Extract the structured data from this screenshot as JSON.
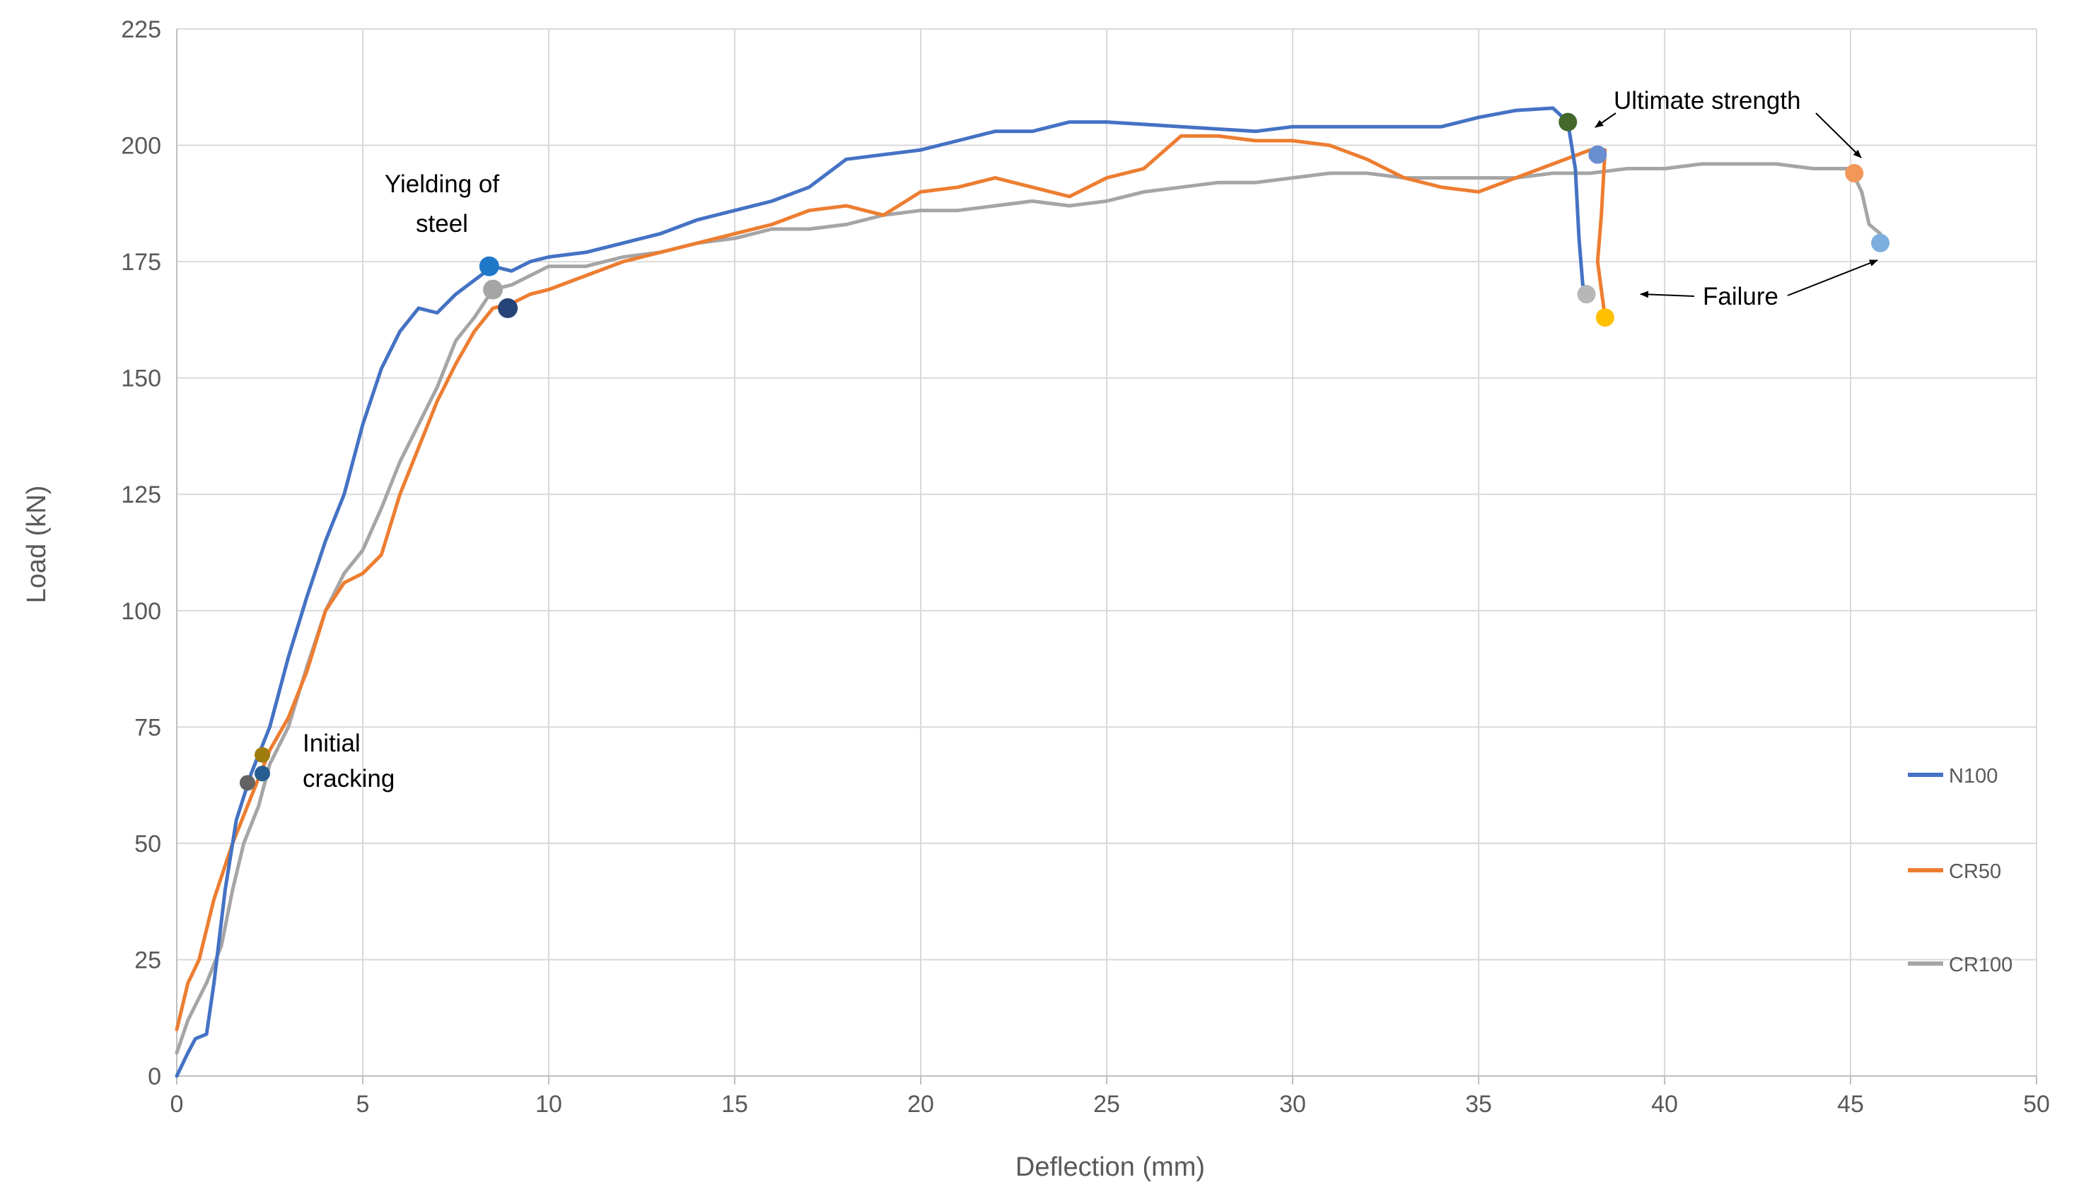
{
  "chart_data": {
    "type": "line",
    "xlabel": "Deflection (mm)",
    "ylabel": "Load (kN)",
    "xlim": [
      0,
      50
    ],
    "ylim": [
      0,
      225
    ],
    "xticks": [
      0,
      5,
      10,
      15,
      20,
      25,
      30,
      35,
      40,
      45,
      50
    ],
    "yticks": [
      0,
      25,
      50,
      75,
      100,
      125,
      150,
      175,
      200,
      225
    ],
    "grid": true,
    "legend_position": "right",
    "series": [
      {
        "name": "N100",
        "color": "#4472c4",
        "points": [
          [
            0,
            0
          ],
          [
            0.3,
            5
          ],
          [
            0.5,
            8
          ],
          [
            0.8,
            9
          ],
          [
            1.0,
            20
          ],
          [
            1.3,
            40
          ],
          [
            1.6,
            55
          ],
          [
            2.0,
            65
          ],
          [
            2.5,
            75
          ],
          [
            3.0,
            90
          ],
          [
            3.5,
            103
          ],
          [
            4.0,
            115
          ],
          [
            4.5,
            125
          ],
          [
            5.0,
            140
          ],
          [
            5.5,
            152
          ],
          [
            6.0,
            160
          ],
          [
            6.5,
            165
          ],
          [
            7.0,
            164
          ],
          [
            7.5,
            168
          ],
          [
            8.0,
            171
          ],
          [
            8.5,
            174
          ],
          [
            9.0,
            173
          ],
          [
            9.5,
            175
          ],
          [
            10.0,
            176
          ],
          [
            11.0,
            177
          ],
          [
            12.0,
            179
          ],
          [
            13.0,
            181
          ],
          [
            14.0,
            184
          ],
          [
            15.0,
            186
          ],
          [
            16.0,
            188
          ],
          [
            17.0,
            191
          ],
          [
            18.0,
            197
          ],
          [
            19.0,
            198
          ],
          [
            20.0,
            199
          ],
          [
            21.0,
            201
          ],
          [
            22.0,
            203
          ],
          [
            23.0,
            203
          ],
          [
            24.0,
            205
          ],
          [
            25.0,
            205
          ],
          [
            26.0,
            204.5
          ],
          [
            27.0,
            204
          ],
          [
            28.0,
            203.5
          ],
          [
            29.0,
            203
          ],
          [
            30.0,
            204
          ],
          [
            31.0,
            204
          ],
          [
            32.0,
            204
          ],
          [
            33.0,
            204
          ],
          [
            34.0,
            204
          ],
          [
            35.0,
            206
          ],
          [
            36.0,
            207.5
          ],
          [
            37.0,
            208
          ],
          [
            37.4,
            205
          ],
          [
            37.6,
            195
          ],
          [
            37.7,
            180
          ],
          [
            37.8,
            170
          ],
          [
            38.0,
            168
          ]
        ]
      },
      {
        "name": "CR50",
        "color": "#ed7d31",
        "points": [
          [
            0,
            10
          ],
          [
            0.3,
            20
          ],
          [
            0.6,
            25
          ],
          [
            1.0,
            38
          ],
          [
            1.5,
            50
          ],
          [
            2.0,
            60
          ],
          [
            2.5,
            70
          ],
          [
            3.0,
            77
          ],
          [
            3.5,
            87
          ],
          [
            4.0,
            100
          ],
          [
            4.5,
            106
          ],
          [
            5.0,
            108
          ],
          [
            5.5,
            112
          ],
          [
            6.0,
            125
          ],
          [
            6.5,
            135
          ],
          [
            7.0,
            145
          ],
          [
            7.5,
            153
          ],
          [
            8.0,
            160
          ],
          [
            8.5,
            165
          ],
          [
            9.0,
            166
          ],
          [
            9.5,
            168
          ],
          [
            10.0,
            169
          ],
          [
            11.0,
            172
          ],
          [
            12.0,
            175
          ],
          [
            13.0,
            177
          ],
          [
            14.0,
            179
          ],
          [
            15.0,
            181
          ],
          [
            16.0,
            183
          ],
          [
            17.0,
            186
          ],
          [
            18.0,
            187
          ],
          [
            19.0,
            185
          ],
          [
            20.0,
            190
          ],
          [
            21.0,
            191
          ],
          [
            22.0,
            193
          ],
          [
            23.0,
            191
          ],
          [
            24.0,
            189
          ],
          [
            25.0,
            193
          ],
          [
            26.0,
            195
          ],
          [
            27.0,
            202
          ],
          [
            28.0,
            202
          ],
          [
            29.0,
            201
          ],
          [
            30.0,
            201
          ],
          [
            31.0,
            200
          ],
          [
            32.0,
            197
          ],
          [
            33.0,
            193
          ],
          [
            34.0,
            191
          ],
          [
            35.0,
            190
          ],
          [
            36.0,
            193
          ],
          [
            37.0,
            196
          ],
          [
            38.0,
            199
          ],
          [
            38.4,
            199
          ],
          [
            38.3,
            185
          ],
          [
            38.2,
            175
          ],
          [
            38.4,
            163
          ]
        ]
      },
      {
        "name": "CR100",
        "color": "#a5a5a5",
        "points": [
          [
            0,
            5
          ],
          [
            0.3,
            12
          ],
          [
            0.8,
            20
          ],
          [
            1.2,
            28
          ],
          [
            1.5,
            40
          ],
          [
            1.8,
            50
          ],
          [
            2.2,
            58
          ],
          [
            2.5,
            67
          ],
          [
            3.0,
            75
          ],
          [
            3.5,
            88
          ],
          [
            4.0,
            100
          ],
          [
            4.5,
            108
          ],
          [
            5.0,
            113
          ],
          [
            5.5,
            122
          ],
          [
            6.0,
            132
          ],
          [
            6.5,
            140
          ],
          [
            7.0,
            148
          ],
          [
            7.5,
            158
          ],
          [
            8.0,
            163
          ],
          [
            8.5,
            169
          ],
          [
            9.0,
            170
          ],
          [
            9.5,
            172
          ],
          [
            10.0,
            174
          ],
          [
            11.0,
            174
          ],
          [
            12.0,
            176
          ],
          [
            13.0,
            177
          ],
          [
            14.0,
            179
          ],
          [
            15.0,
            180
          ],
          [
            16.0,
            182
          ],
          [
            17.0,
            182
          ],
          [
            18.0,
            183
          ],
          [
            19.0,
            185
          ],
          [
            20.0,
            186
          ],
          [
            21.0,
            186
          ],
          [
            22.0,
            187
          ],
          [
            23.0,
            188
          ],
          [
            24.0,
            187
          ],
          [
            25.0,
            188
          ],
          [
            26.0,
            190
          ],
          [
            27.0,
            191
          ],
          [
            28.0,
            192
          ],
          [
            29.0,
            192
          ],
          [
            30.0,
            193
          ],
          [
            31.0,
            194
          ],
          [
            32.0,
            194
          ],
          [
            33.0,
            193
          ],
          [
            34.0,
            193
          ],
          [
            35.0,
            193
          ],
          [
            36.0,
            193
          ],
          [
            37.0,
            194
          ],
          [
            38.0,
            194
          ],
          [
            39.0,
            195
          ],
          [
            40.0,
            195
          ],
          [
            41.0,
            196
          ],
          [
            42.0,
            196
          ],
          [
            43.0,
            196
          ],
          [
            44.0,
            195
          ],
          [
            45.0,
            195
          ],
          [
            45.3,
            190
          ],
          [
            45.5,
            183
          ],
          [
            45.8,
            181
          ],
          [
            45.9,
            179
          ]
        ]
      }
    ],
    "markers": [
      {
        "x": 2.3,
        "y": 65,
        "color": "#255e91",
        "r": 11
      },
      {
        "x": 2.3,
        "y": 69,
        "color": "#9e7c0c",
        "r": 11
      },
      {
        "x": 1.9,
        "y": 63,
        "color": "#636363",
        "r": 11
      },
      {
        "x": 8.4,
        "y": 174,
        "color": "#1f77c8",
        "r": 14
      },
      {
        "x": 8.5,
        "y": 169,
        "color": "#a5a5a5",
        "r": 14
      },
      {
        "x": 8.9,
        "y": 165,
        "color": "#264478",
        "r": 14
      },
      {
        "x": 37.4,
        "y": 205,
        "color": "#43682b",
        "r": 13
      },
      {
        "x": 38.2,
        "y": 198,
        "color": "#698ed0",
        "r": 13
      },
      {
        "x": 45.1,
        "y": 194,
        "color": "#f1975a",
        "r": 13
      },
      {
        "x": 37.9,
        "y": 168,
        "color": "#b7b7b7",
        "r": 13
      },
      {
        "x": 38.4,
        "y": 163,
        "color": "#ffc000",
        "r": 13
      },
      {
        "x": 45.8,
        "y": 179,
        "color": "#7cafdd",
        "r": 13
      }
    ],
    "annotations": [
      {
        "id": "yielding",
        "lines": [
          "Yielding of",
          "steel"
        ]
      },
      {
        "id": "cracking",
        "lines": [
          "Initial",
          "cracking"
        ]
      },
      {
        "id": "ultimate",
        "lines": [
          "Ultimate strength"
        ]
      },
      {
        "id": "failure",
        "lines": [
          "Failure"
        ]
      }
    ]
  }
}
